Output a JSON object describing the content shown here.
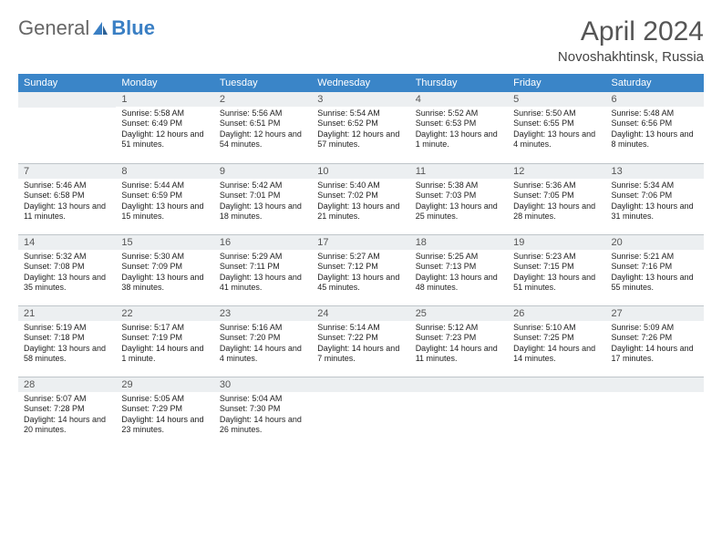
{
  "brand": {
    "part1": "General",
    "part2": "Blue"
  },
  "title": "April 2024",
  "location": "Novoshakhtinsk, Russia",
  "colors": {
    "header_bg": "#3a85c8",
    "header_fg": "#ffffff",
    "daynum_bg": "#eceff1",
    "daynum_border": "#bfc5ca",
    "brand_blue": "#3a7fc4",
    "brand_gray": "#666666"
  },
  "weekdays": [
    "Sunday",
    "Monday",
    "Tuesday",
    "Wednesday",
    "Thursday",
    "Friday",
    "Saturday"
  ],
  "first_weekday_index": 1,
  "days": [
    {
      "n": 1,
      "sunrise": "5:58 AM",
      "sunset": "6:49 PM",
      "daylight": "12 hours and 51 minutes."
    },
    {
      "n": 2,
      "sunrise": "5:56 AM",
      "sunset": "6:51 PM",
      "daylight": "12 hours and 54 minutes."
    },
    {
      "n": 3,
      "sunrise": "5:54 AM",
      "sunset": "6:52 PM",
      "daylight": "12 hours and 57 minutes."
    },
    {
      "n": 4,
      "sunrise": "5:52 AM",
      "sunset": "6:53 PM",
      "daylight": "13 hours and 1 minute."
    },
    {
      "n": 5,
      "sunrise": "5:50 AM",
      "sunset": "6:55 PM",
      "daylight": "13 hours and 4 minutes."
    },
    {
      "n": 6,
      "sunrise": "5:48 AM",
      "sunset": "6:56 PM",
      "daylight": "13 hours and 8 minutes."
    },
    {
      "n": 7,
      "sunrise": "5:46 AM",
      "sunset": "6:58 PM",
      "daylight": "13 hours and 11 minutes."
    },
    {
      "n": 8,
      "sunrise": "5:44 AM",
      "sunset": "6:59 PM",
      "daylight": "13 hours and 15 minutes."
    },
    {
      "n": 9,
      "sunrise": "5:42 AM",
      "sunset": "7:01 PM",
      "daylight": "13 hours and 18 minutes."
    },
    {
      "n": 10,
      "sunrise": "5:40 AM",
      "sunset": "7:02 PM",
      "daylight": "13 hours and 21 minutes."
    },
    {
      "n": 11,
      "sunrise": "5:38 AM",
      "sunset": "7:03 PM",
      "daylight": "13 hours and 25 minutes."
    },
    {
      "n": 12,
      "sunrise": "5:36 AM",
      "sunset": "7:05 PM",
      "daylight": "13 hours and 28 minutes."
    },
    {
      "n": 13,
      "sunrise": "5:34 AM",
      "sunset": "7:06 PM",
      "daylight": "13 hours and 31 minutes."
    },
    {
      "n": 14,
      "sunrise": "5:32 AM",
      "sunset": "7:08 PM",
      "daylight": "13 hours and 35 minutes."
    },
    {
      "n": 15,
      "sunrise": "5:30 AM",
      "sunset": "7:09 PM",
      "daylight": "13 hours and 38 minutes."
    },
    {
      "n": 16,
      "sunrise": "5:29 AM",
      "sunset": "7:11 PM",
      "daylight": "13 hours and 41 minutes."
    },
    {
      "n": 17,
      "sunrise": "5:27 AM",
      "sunset": "7:12 PM",
      "daylight": "13 hours and 45 minutes."
    },
    {
      "n": 18,
      "sunrise": "5:25 AM",
      "sunset": "7:13 PM",
      "daylight": "13 hours and 48 minutes."
    },
    {
      "n": 19,
      "sunrise": "5:23 AM",
      "sunset": "7:15 PM",
      "daylight": "13 hours and 51 minutes."
    },
    {
      "n": 20,
      "sunrise": "5:21 AM",
      "sunset": "7:16 PM",
      "daylight": "13 hours and 55 minutes."
    },
    {
      "n": 21,
      "sunrise": "5:19 AM",
      "sunset": "7:18 PM",
      "daylight": "13 hours and 58 minutes."
    },
    {
      "n": 22,
      "sunrise": "5:17 AM",
      "sunset": "7:19 PM",
      "daylight": "14 hours and 1 minute."
    },
    {
      "n": 23,
      "sunrise": "5:16 AM",
      "sunset": "7:20 PM",
      "daylight": "14 hours and 4 minutes."
    },
    {
      "n": 24,
      "sunrise": "5:14 AM",
      "sunset": "7:22 PM",
      "daylight": "14 hours and 7 minutes."
    },
    {
      "n": 25,
      "sunrise": "5:12 AM",
      "sunset": "7:23 PM",
      "daylight": "14 hours and 11 minutes."
    },
    {
      "n": 26,
      "sunrise": "5:10 AM",
      "sunset": "7:25 PM",
      "daylight": "14 hours and 14 minutes."
    },
    {
      "n": 27,
      "sunrise": "5:09 AM",
      "sunset": "7:26 PM",
      "daylight": "14 hours and 17 minutes."
    },
    {
      "n": 28,
      "sunrise": "5:07 AM",
      "sunset": "7:28 PM",
      "daylight": "14 hours and 20 minutes."
    },
    {
      "n": 29,
      "sunrise": "5:05 AM",
      "sunset": "7:29 PM",
      "daylight": "14 hours and 23 minutes."
    },
    {
      "n": 30,
      "sunrise": "5:04 AM",
      "sunset": "7:30 PM",
      "daylight": "14 hours and 26 minutes."
    }
  ],
  "labels": {
    "sunrise": "Sunrise:",
    "sunset": "Sunset:",
    "daylight": "Daylight:"
  }
}
